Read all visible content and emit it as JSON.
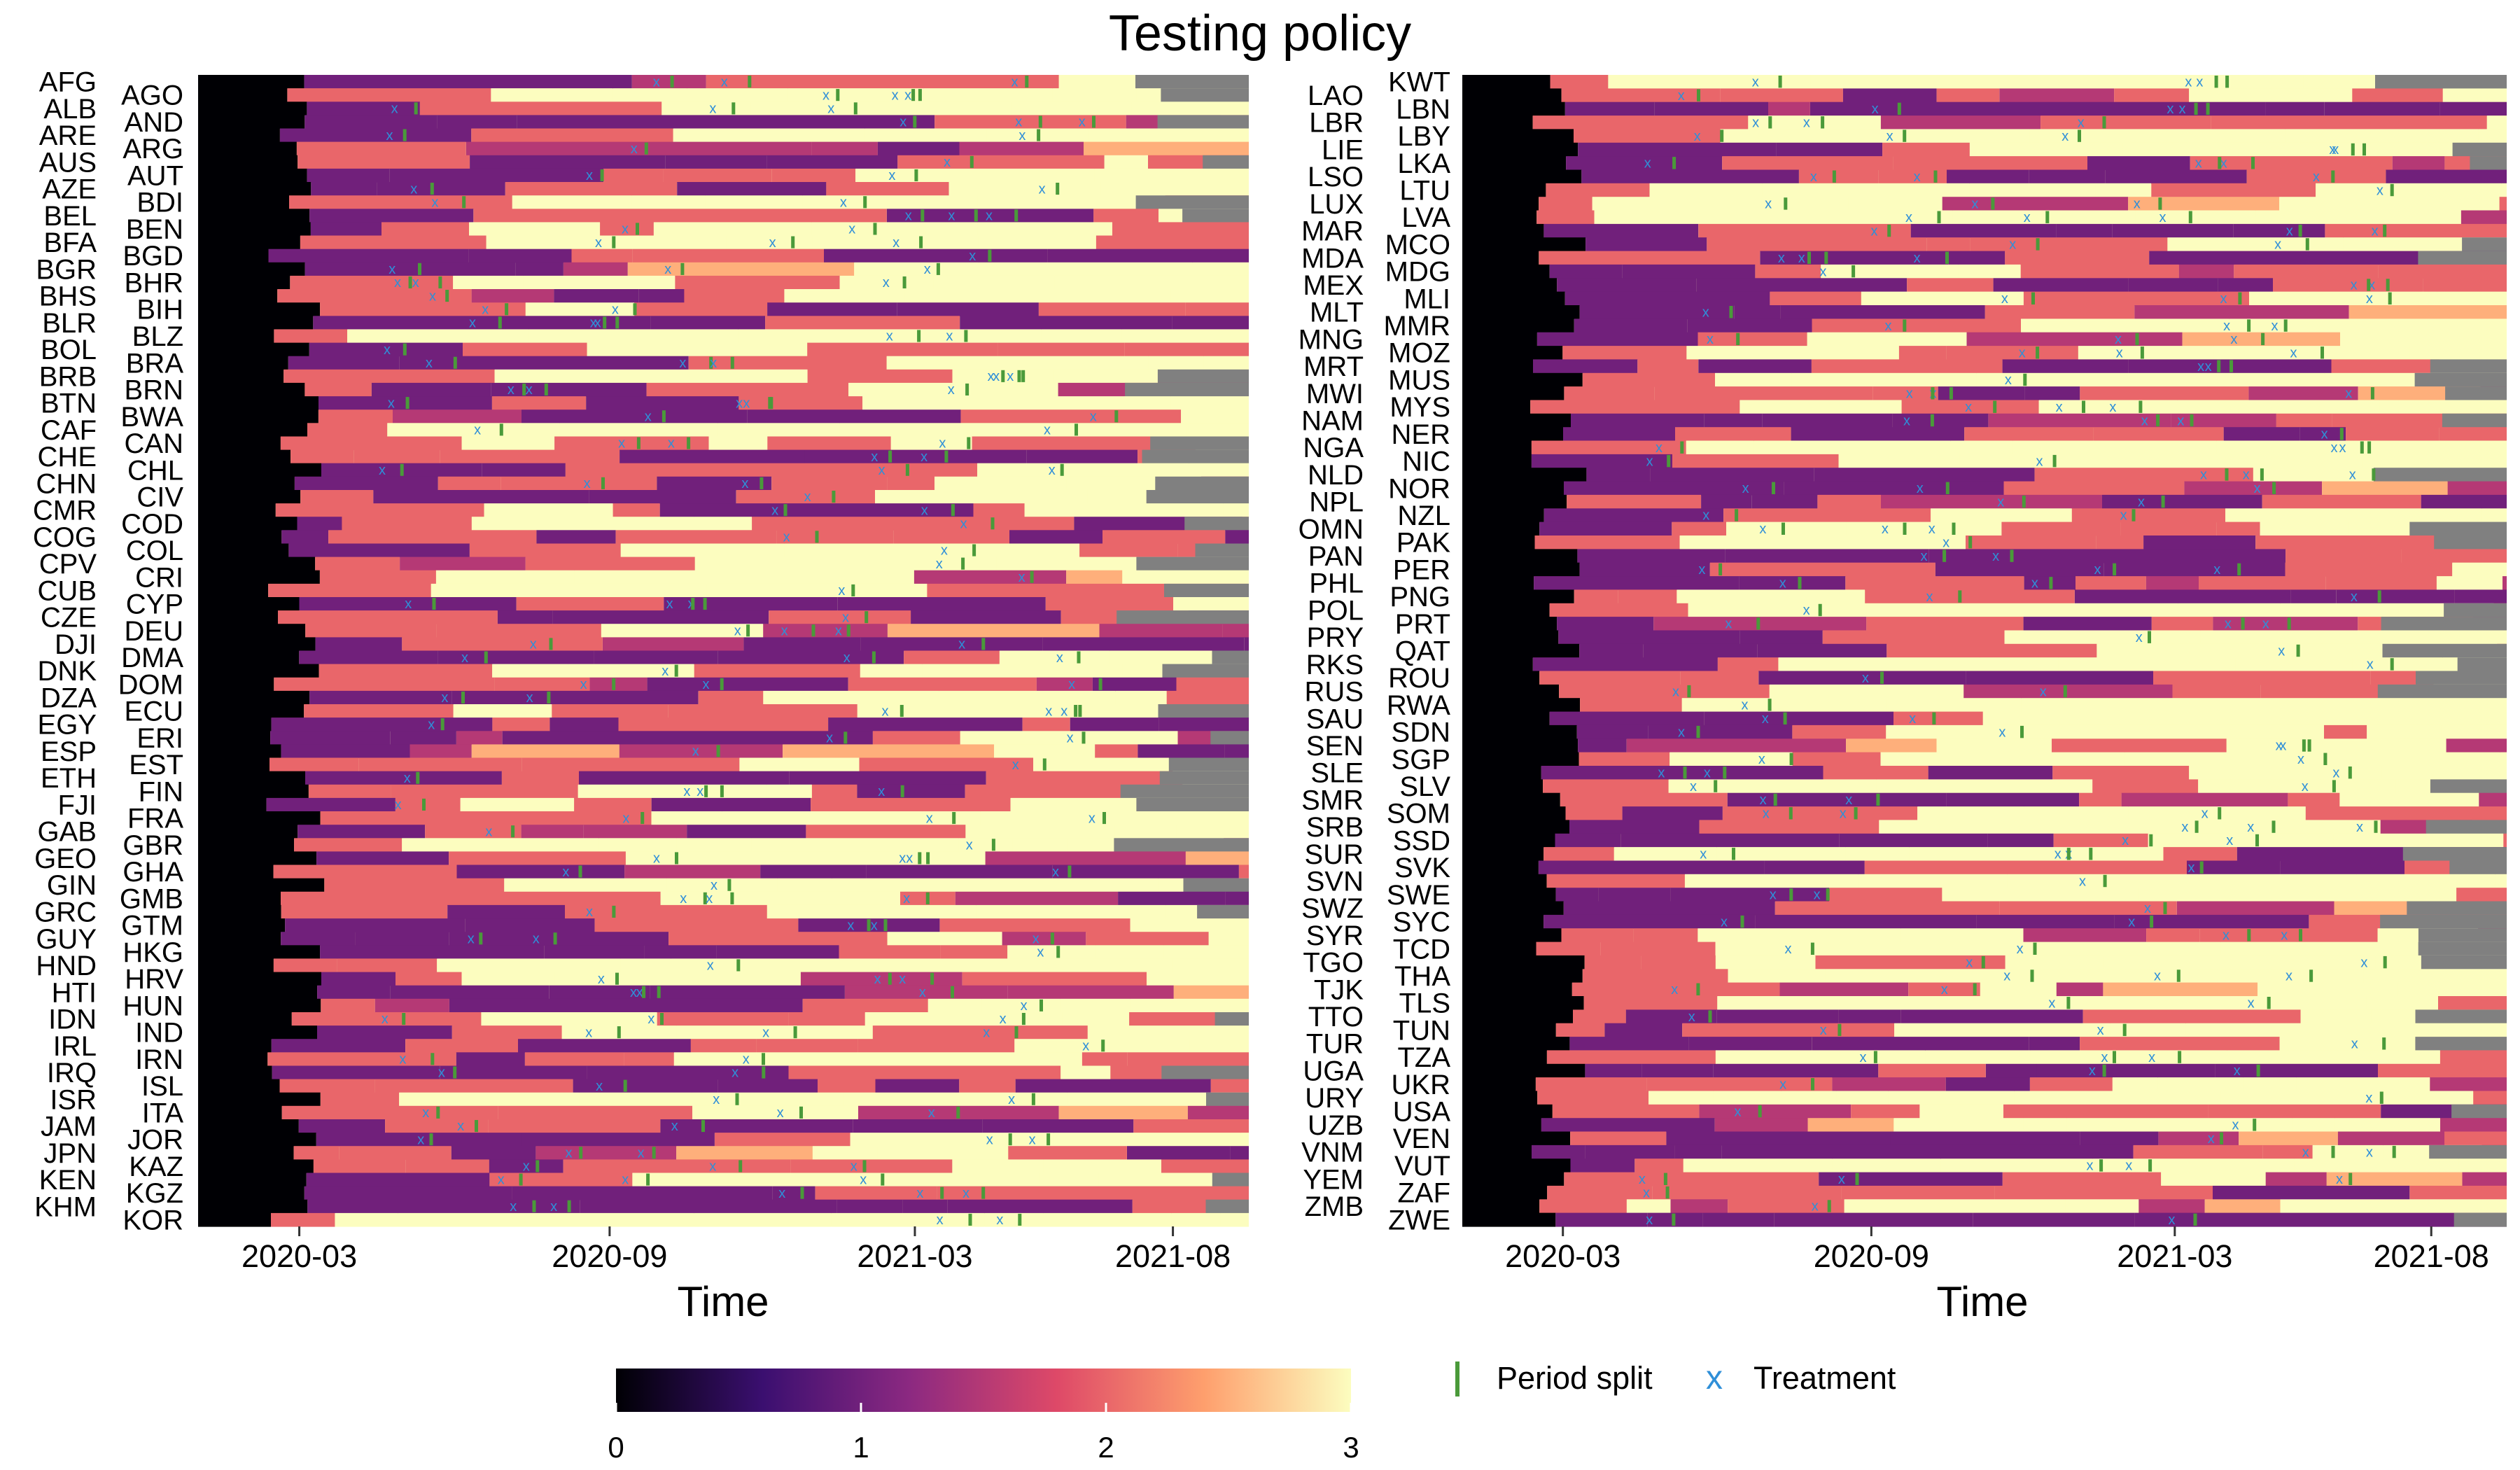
{
  "title": "Testing policy",
  "colors": {
    "na_gray": "#808080",
    "split_marker": "#4a9a3a",
    "treatment_marker": "#2f8fd8",
    "scale": [
      "#000004",
      "#3b0f70",
      "#8c2981",
      "#de4968",
      "#fe9f6d",
      "#fcfdbf"
    ]
  },
  "x_axis": {
    "label": "Time",
    "tick_labels": [
      "2020-03",
      "2020-09",
      "2021-03",
      "2021-08"
    ],
    "tick_values": [
      "2020-03-01",
      "2020-09-01",
      "2021-03-01",
      "2021-08-01"
    ],
    "range": [
      "2020-01-01",
      "2021-09-15"
    ]
  },
  "colorbar": {
    "min": 0,
    "max": 3,
    "ticks": [
      "0",
      "1",
      "2",
      "3"
    ]
  },
  "legend": {
    "split_label": "Period split",
    "treatment_label": "Treatment",
    "treatment_symbol": "x"
  },
  "chart_data": [
    {
      "type": "heatmap",
      "panel": "left",
      "xlabel": "Time",
      "x_tick_labels": [
        "2020-03",
        "2020-09",
        "2021-03",
        "2021-08"
      ],
      "value_range": [
        0,
        3
      ],
      "rows": [
        "AFG",
        "AGO",
        "ALB",
        "AND",
        "ARE",
        "ARG",
        "AUS",
        "AUT",
        "AZE",
        "BDI",
        "BEL",
        "BEN",
        "BFA",
        "BGD",
        "BGR",
        "BHR",
        "BHS",
        "BIH",
        "BLR",
        "BLZ",
        "BOL",
        "BRA",
        "BRB",
        "BRN",
        "BTN",
        "BWA",
        "CAF",
        "CAN",
        "CHE",
        "CHL",
        "CHN",
        "CIV",
        "CMR",
        "COD",
        "COG",
        "COL",
        "CPV",
        "CRI",
        "CUB",
        "CYP",
        "CZE",
        "DEU",
        "DJI",
        "DMA",
        "DNK",
        "DOM",
        "DZA",
        "ECU",
        "EGY",
        "ERI",
        "ESP",
        "EST",
        "ETH",
        "FIN",
        "FJI",
        "FRA",
        "GAB",
        "GBR",
        "GEO",
        "GHA",
        "GIN",
        "GMB",
        "GRC",
        "GTM",
        "GUY",
        "HKG",
        "HND",
        "HRV",
        "HTI",
        "HUN",
        "IDN",
        "IND",
        "IRL",
        "IRN",
        "IRQ",
        "ISL",
        "ISR",
        "ITA",
        "JAM",
        "JOR",
        "JPN",
        "KAZ",
        "KEN",
        "KGZ",
        "KHM",
        "KOR"
      ],
      "row_labels_outer": [
        "AFG",
        "ALB",
        "ARE",
        "AUS",
        "AZE",
        "BEL",
        "BFA",
        "BGR",
        "BHS",
        "BLR",
        "BOL",
        "BRB",
        "BTN",
        "CAF",
        "CHE",
        "CHN",
        "CMR",
        "COG",
        "CPV",
        "CUB",
        "CZE",
        "DJI",
        "DNK",
        "DZA",
        "EGY",
        "ESP",
        "ETH",
        "FJI",
        "GAB",
        "GEO",
        "GIN",
        "GRC",
        "GUY",
        "HND",
        "HTI",
        "IDN",
        "IRL",
        "IRQ",
        "ISR",
        "JAM",
        "JPN",
        "KEN",
        "KHM"
      ],
      "row_labels_inner": [
        "AGO",
        "AND",
        "ARG",
        "AUT",
        "BDI",
        "BEN",
        "BGD",
        "BHR",
        "BIH",
        "BLZ",
        "BRA",
        "BRN",
        "BWA",
        "CAN",
        "CHL",
        "CIV",
        "COD",
        "COL",
        "CRI",
        "CYP",
        "DEU",
        "DMA",
        "DOM",
        "ECU",
        "ERI",
        "EST",
        "FIN",
        "FRA",
        "GBR",
        "GHA",
        "GMB",
        "GTM",
        "HKG",
        "HRV",
        "HUN",
        "IND",
        "IRN",
        "ISL",
        "ITA",
        "JOR",
        "KAZ",
        "KGZ",
        "KOR"
      ]
    },
    {
      "type": "heatmap",
      "panel": "right",
      "xlabel": "Time",
      "x_tick_labels": [
        "2020-03",
        "2020-09",
        "2021-03",
        "2021-08"
      ],
      "value_range": [
        0,
        3
      ],
      "rows": [
        "KWT",
        "LAO",
        "LBN",
        "LBR",
        "LBY",
        "LIE",
        "LKA",
        "LSO",
        "LTU",
        "LUX",
        "LVA",
        "MAR",
        "MCO",
        "MDA",
        "MDG",
        "MEX",
        "MLI",
        "MLT",
        "MMR",
        "MNG",
        "MOZ",
        "MRT",
        "MUS",
        "MWI",
        "MYS",
        "NAM",
        "NER",
        "NGA",
        "NIC",
        "NLD",
        "NOR",
        "NPL",
        "NZL",
        "OMN",
        "PAK",
        "PAN",
        "PER",
        "PHL",
        "PNG",
        "POL",
        "PRT",
        "PRY",
        "QAT",
        "RKS",
        "ROU",
        "RUS",
        "RWA",
        "SAU",
        "SDN",
        "SEN",
        "SGP",
        "SLE",
        "SLV",
        "SMR",
        "SOM",
        "SRB",
        "SSD",
        "SUR",
        "SVK",
        "SVN",
        "SWE",
        "SWZ",
        "SYC",
        "SYR",
        "TCD",
        "TGO",
        "THA",
        "TJK",
        "TLS",
        "TTO",
        "TUN",
        "TUR",
        "TZA",
        "UGA",
        "UKR",
        "URY",
        "USA",
        "UZB",
        "VEN",
        "VNM",
        "VUT",
        "YEM",
        "ZAF",
        "ZMB",
        "ZWE"
      ],
      "row_labels_outer": [
        "LAO",
        "LBR",
        "LIE",
        "LSO",
        "LUX",
        "MAR",
        "MDA",
        "MEX",
        "MLT",
        "MNG",
        "MRT",
        "MWI",
        "NAM",
        "NGA",
        "NLD",
        "NPL",
        "OMN",
        "PAN",
        "PHL",
        "POL",
        "PRY",
        "RKS",
        "RUS",
        "SAU",
        "SEN",
        "SLE",
        "SMR",
        "SRB",
        "SUR",
        "SVN",
        "SWZ",
        "SYR",
        "TGO",
        "TJK",
        "TTO",
        "TUR",
        "UGA",
        "URY",
        "UZB",
        "VNM",
        "YEM",
        "ZMB"
      ],
      "row_labels_inner": [
        "KWT",
        "LBN",
        "LBY",
        "LKA",
        "LTU",
        "LVA",
        "MCO",
        "MDG",
        "MLI",
        "MMR",
        "MOZ",
        "MUS",
        "MYS",
        "NER",
        "NIC",
        "NOR",
        "NZL",
        "PAK",
        "PER",
        "PNG",
        "PRT",
        "QAT",
        "ROU",
        "RWA",
        "SDN",
        "SGP",
        "SLV",
        "SOM",
        "SSD",
        "SVK",
        "SWE",
        "SYC",
        "TCD",
        "THA",
        "TLS",
        "TUN",
        "TZA",
        "UKR",
        "USA",
        "VEN",
        "VUT",
        "ZAF",
        "ZWE"
      ]
    }
  ]
}
